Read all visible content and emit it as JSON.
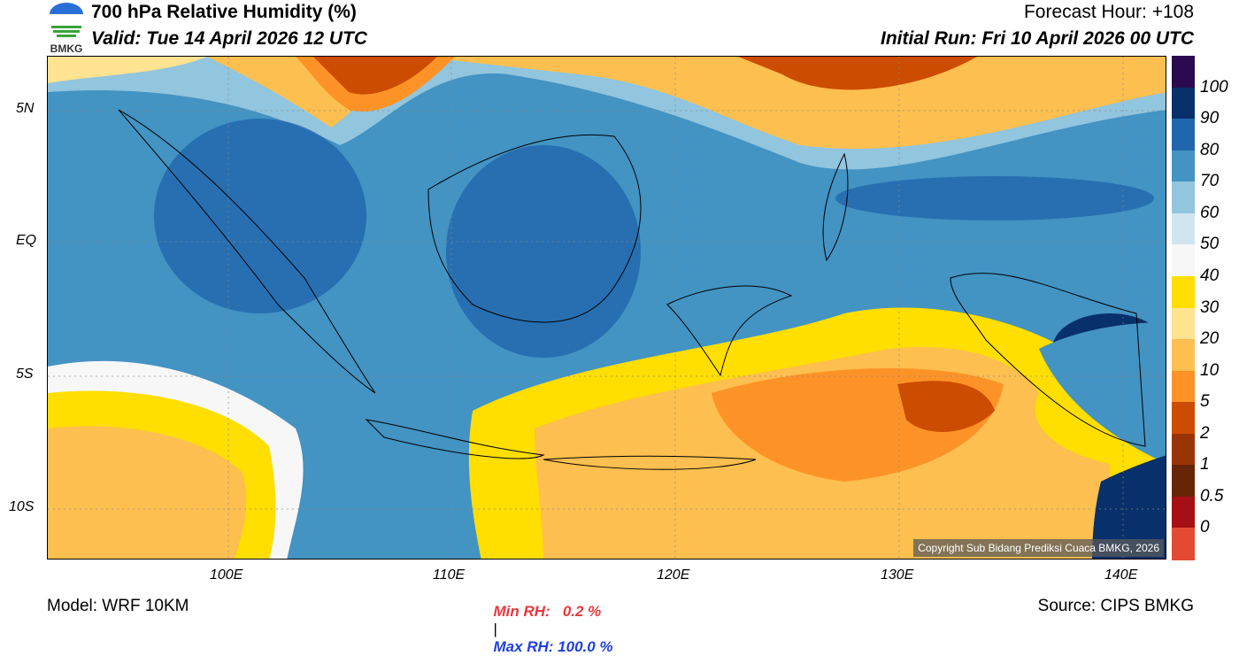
{
  "header": {
    "logo_text": "BMKG",
    "title": "700 hPa Relative Humidity (%)",
    "valid": "Valid: Tue 14 April 2026 12 UTC",
    "forecast_hour": "Forecast Hour: +108",
    "initial_run": "Initial Run: Fri 10 April 2026 00 UTC"
  },
  "axes": {
    "lat_ticks": [
      "5N",
      "EQ",
      "5S",
      "10S"
    ],
    "lon_ticks": [
      "100E",
      "110E",
      "120E",
      "130E",
      "140E"
    ]
  },
  "colorbar": {
    "labels": [
      "100",
      "90",
      "80",
      "70",
      "60",
      "50",
      "40",
      "30",
      "20",
      "10",
      "5",
      "2",
      "1",
      "0.5",
      "0"
    ],
    "colors": [
      "#2b0a4f",
      "#08306b",
      "#2166ac",
      "#4393c3",
      "#92c5de",
      "#d1e5f0",
      "#f7f7f7",
      "#ffde00",
      "#fee391",
      "#fdbf4f",
      "#fd9327",
      "#cc4c02",
      "#993404",
      "#662506",
      "#a50f15",
      "#e34a33"
    ]
  },
  "copyright": "Copyright Sub Bidang Prediksi Cuaca BMKG, 2026",
  "footer": {
    "model": "Model: WRF 10KM",
    "min_rh": "Min RH:   0.2 %",
    "separator": "|",
    "max_rh": "Max RH: 100.0 %",
    "source": "Source: CIPS BMKG"
  }
}
